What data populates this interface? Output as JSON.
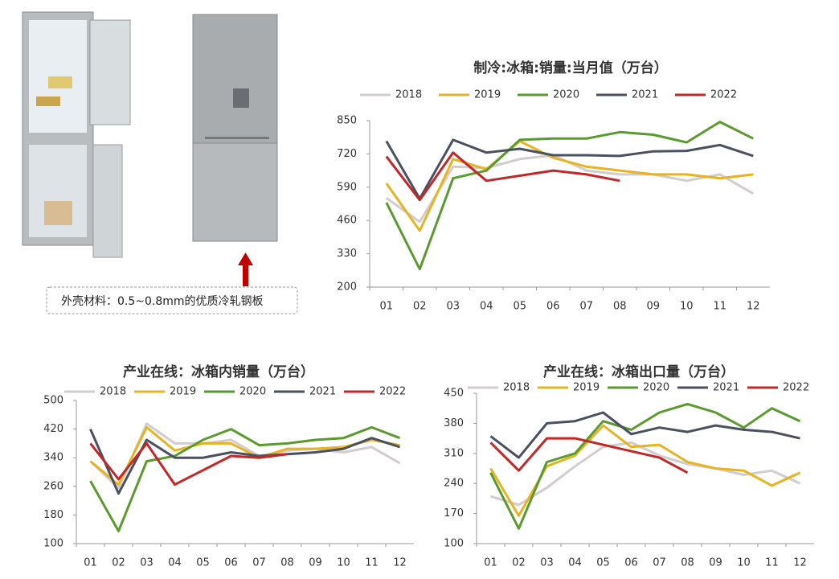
{
  "caption": "外壳材料：0.5~0.8mm的优质冷轧钢板",
  "chart_data": [
    {
      "type": "line",
      "title": "制冷:冰箱:销量:当月值（万台）",
      "categories": [
        "01",
        "02",
        "03",
        "04",
        "05",
        "06",
        "07",
        "08",
        "09",
        "10",
        "11",
        "12"
      ],
      "ylim": [
        200,
        850
      ],
      "yticks": [
        200,
        330,
        460,
        590,
        720,
        850
      ],
      "series": [
        {
          "name": "2018",
          "color": "#d3cccc",
          "values": [
            548,
            455,
            670,
            665,
            700,
            715,
            655,
            640,
            640,
            615,
            640,
            565
          ]
        },
        {
          "name": "2019",
          "color": "#e6b422",
          "values": [
            605,
            420,
            700,
            660,
            770,
            705,
            670,
            655,
            640,
            640,
            625,
            640
          ]
        },
        {
          "name": "2020",
          "color": "#5a9a2f",
          "values": [
            530,
            270,
            625,
            655,
            775,
            780,
            780,
            805,
            795,
            765,
            845,
            780
          ]
        },
        {
          "name": "2021",
          "color": "#4a5060",
          "values": [
            770,
            545,
            775,
            725,
            740,
            715,
            715,
            712,
            730,
            732,
            755,
            712
          ]
        },
        {
          "name": "2022",
          "color": "#c0282a",
          "values": [
            710,
            540,
            725,
            615,
            635,
            655,
            640,
            615,
            null,
            null,
            null,
            null
          ]
        }
      ]
    },
    {
      "type": "line",
      "title": "产业在线：冰箱内销量（万台）",
      "categories": [
        "01",
        "02",
        "03",
        "04",
        "05",
        "06",
        "07",
        "08",
        "09",
        "10",
        "11",
        "12"
      ],
      "ylim": [
        100,
        500
      ],
      "yticks": [
        100,
        180,
        260,
        340,
        420,
        500
      ],
      "series": [
        {
          "name": "2018",
          "color": "#d3cccc",
          "values": [
            330,
            255,
            435,
            380,
            380,
            390,
            345,
            360,
            365,
            355,
            370,
            325
          ]
        },
        {
          "name": "2019",
          "color": "#e6b422",
          "values": [
            330,
            265,
            425,
            360,
            380,
            380,
            340,
            365,
            365,
            370,
            390,
            375
          ]
        },
        {
          "name": "2020",
          "color": "#5a9a2f",
          "values": [
            275,
            135,
            330,
            345,
            390,
            420,
            375,
            380,
            390,
            395,
            425,
            395
          ]
        },
        {
          "name": "2021",
          "color": "#4a5060",
          "values": [
            420,
            240,
            390,
            340,
            340,
            355,
            345,
            350,
            355,
            365,
            395,
            370
          ]
        },
        {
          "name": "2022",
          "color": "#c0282a",
          "values": [
            380,
            280,
            380,
            265,
            305,
            345,
            340,
            350,
            null,
            null,
            null,
            null
          ]
        }
      ]
    },
    {
      "type": "line",
      "title": "产业在线：冰箱出口量（万台）",
      "categories": [
        "01",
        "02",
        "03",
        "04",
        "05",
        "06",
        "07",
        "08",
        "09",
        "10",
        "11",
        "12"
      ],
      "ylim": [
        100,
        450
      ],
      "yticks": [
        100,
        170,
        240,
        310,
        380,
        450
      ],
      "series": [
        {
          "name": "2018",
          "color": "#d3cccc",
          "values": [
            210,
            190,
            230,
            280,
            325,
            335,
            305,
            285,
            275,
            260,
            270,
            240
          ]
        },
        {
          "name": "2019",
          "color": "#e6b422",
          "values": [
            275,
            165,
            280,
            305,
            375,
            325,
            330,
            290,
            275,
            270,
            235,
            265
          ]
        },
        {
          "name": "2020",
          "color": "#5a9a2f",
          "values": [
            265,
            135,
            290,
            310,
            385,
            365,
            405,
            425,
            405,
            370,
            415,
            385
          ]
        },
        {
          "name": "2021",
          "color": "#4a5060",
          "values": [
            350,
            300,
            380,
            385,
            405,
            355,
            370,
            360,
            375,
            365,
            360,
            345
          ]
        },
        {
          "name": "2022",
          "color": "#c0282a",
          "values": [
            335,
            270,
            345,
            345,
            330,
            315,
            300,
            265,
            null,
            null,
            null,
            null
          ]
        }
      ]
    }
  ]
}
